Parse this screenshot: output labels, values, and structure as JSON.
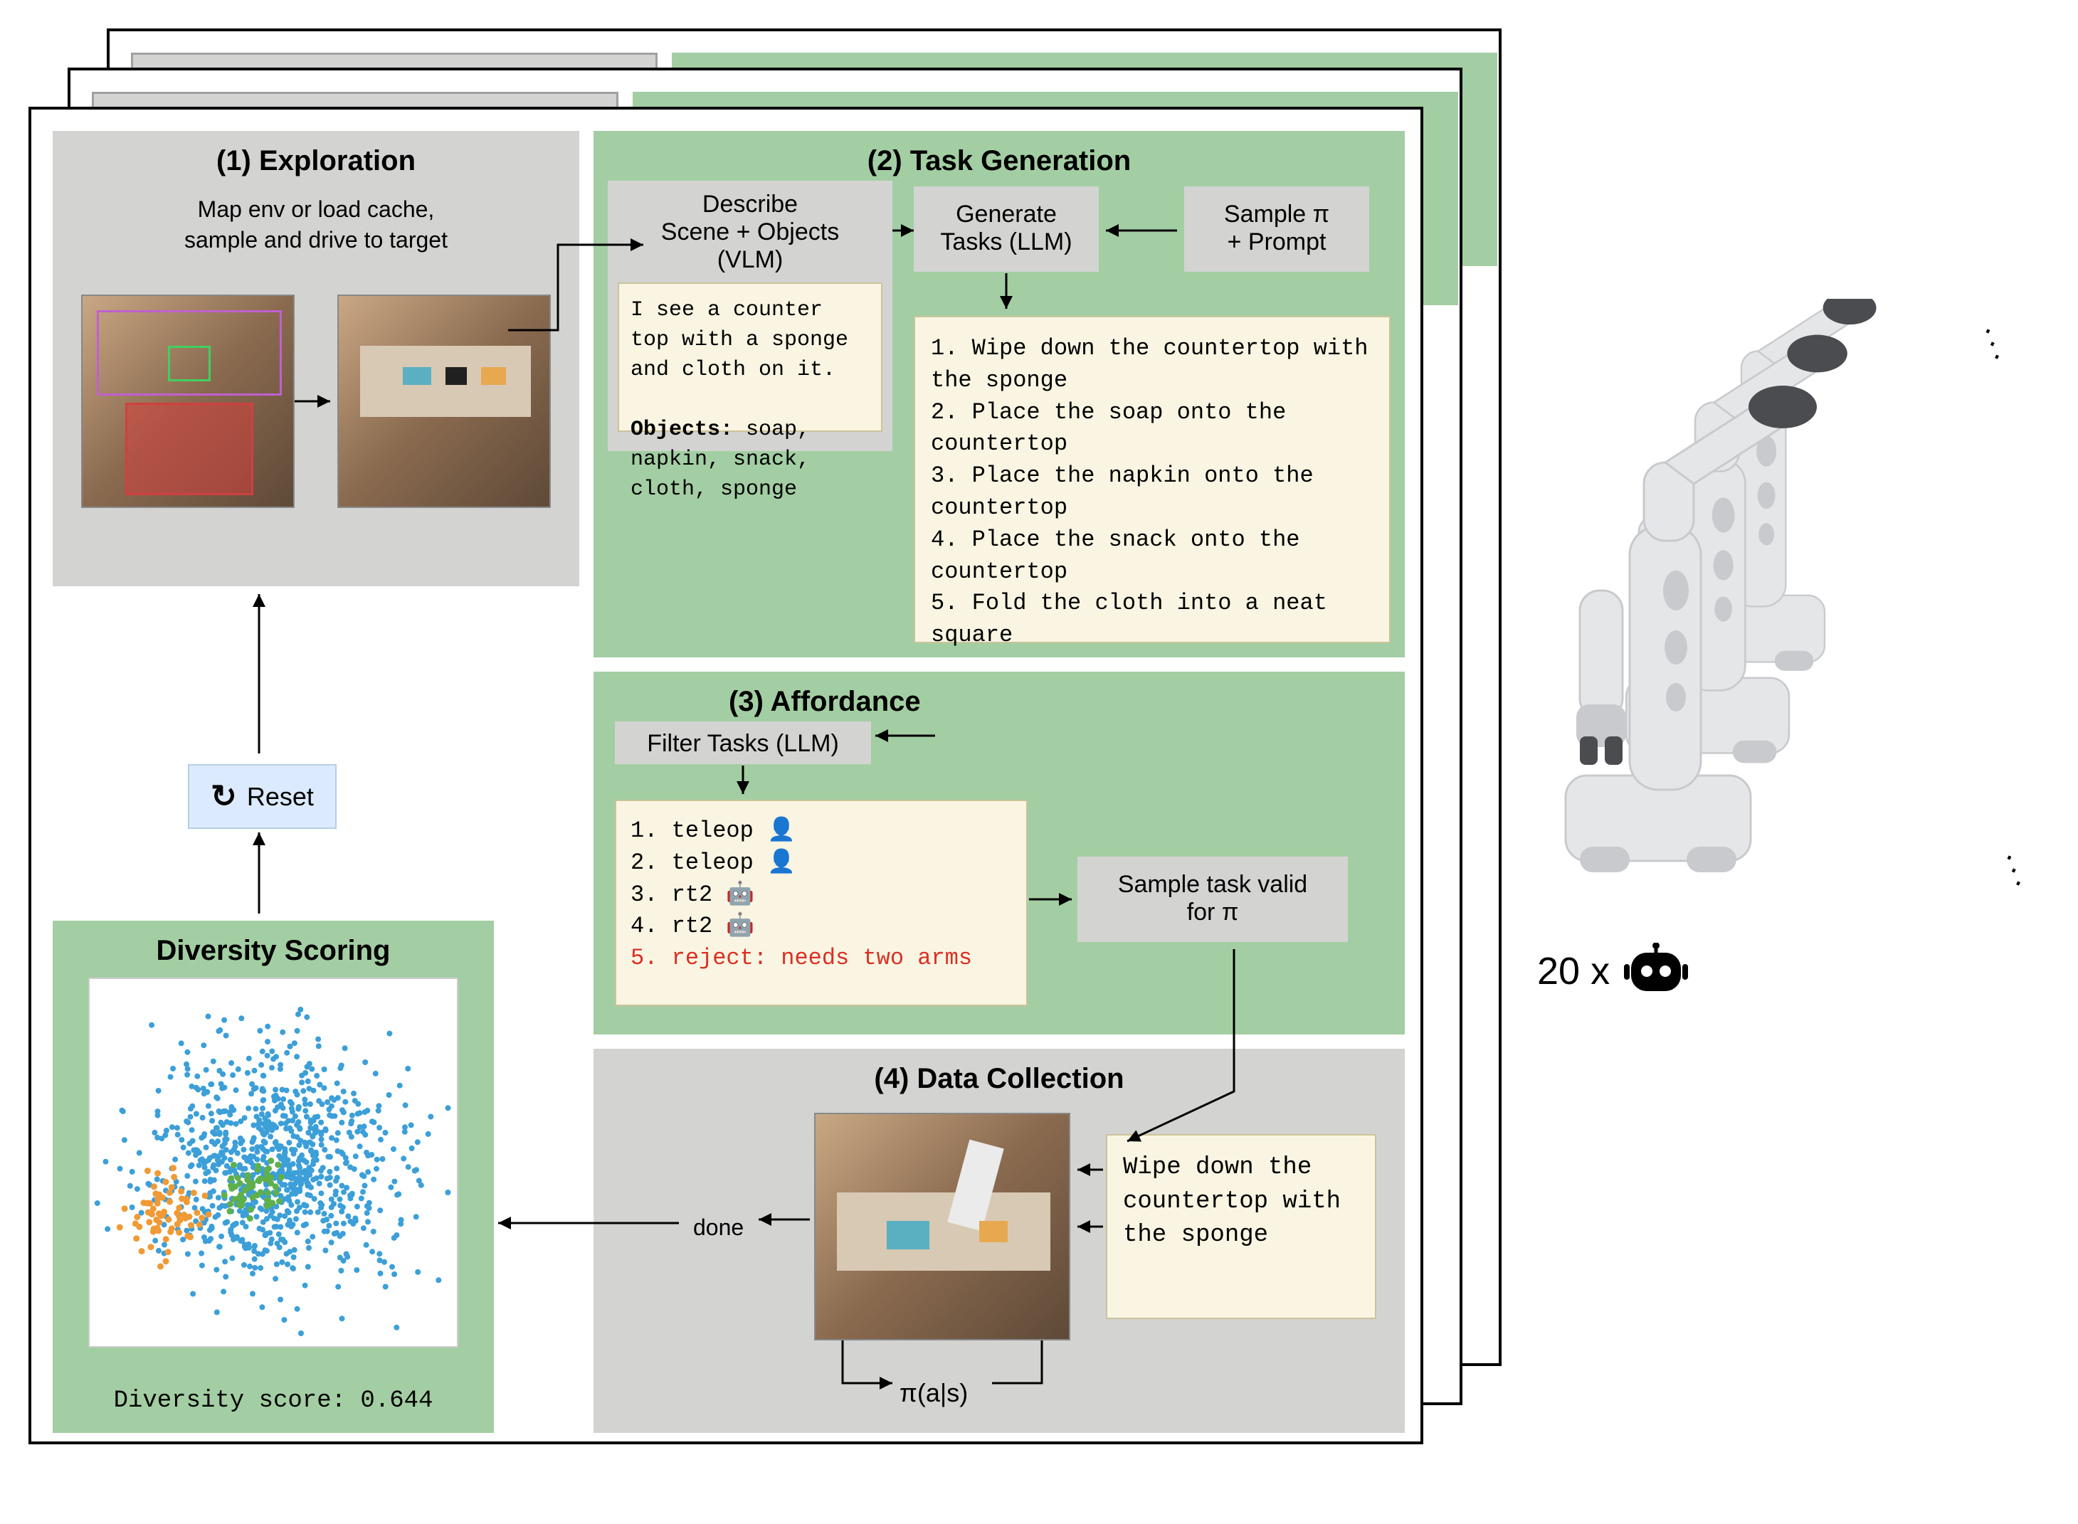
{
  "stages": {
    "exploration": {
      "title": "(1) Exploration",
      "caption": "Map env or load cache,\nsample and drive to target"
    },
    "task_generation": {
      "title": "(2) Task Generation",
      "describe_box_title": "Describe\nScene + Objects\n(VLM)",
      "describe_output": "I see a counter top with a sponge and cloth on it.",
      "objects_label": "Objects:",
      "objects_list": "soap, napkin, snack, cloth, sponge",
      "generate_box": "Generate\nTasks (LLM)",
      "sample_box": "Sample π\n+ Prompt",
      "tasks": [
        "1. Wipe down the countertop with the sponge",
        "2. Place the soap onto the countertop",
        "3. Place the napkin onto the countertop",
        "4. Place the snack onto the countertop",
        "5. Fold the cloth into a neat square"
      ]
    },
    "affordance": {
      "title": "(3) Affordance",
      "filter_box": "Filter Tasks (LLM)",
      "results": [
        {
          "idx": "1.",
          "label": "teleop",
          "icon": "person"
        },
        {
          "idx": "2.",
          "label": "teleop",
          "icon": "person"
        },
        {
          "idx": "3.",
          "label": "rt2",
          "icon": "robot"
        },
        {
          "idx": "4.",
          "label": "rt2",
          "icon": "robot"
        }
      ],
      "reject_line": "5. reject: needs two arms",
      "sample_valid_box": "Sample task valid\nfor π"
    },
    "data_collection": {
      "title": "(4) Data Collection",
      "task_text": "Wipe down the countertop with the sponge",
      "done_label": "done",
      "policy_label": "π(a|s)"
    },
    "diversity": {
      "title": "Diversity Scoring",
      "score_label": "Diversity score: 0.644",
      "scatter": {
        "main_color": "#3c9fd8",
        "accent1_color": "#f09a36",
        "accent2_color": "#5fb04a",
        "n_points": 900
      }
    },
    "reset": {
      "label": "Reset"
    }
  },
  "robot": {
    "count_label": "20 x",
    "body_color": "#e5e6e8",
    "shadow_color": "#c8cacd",
    "dark_color": "#4a4c50"
  },
  "arrows": {
    "color": "#000000",
    "stroke_width": 3
  },
  "colors": {
    "green": "#a3cea3",
    "gray": "#d3d4d2",
    "offwhite": "#f9f5e2",
    "lightblue": "#dbeafe"
  }
}
